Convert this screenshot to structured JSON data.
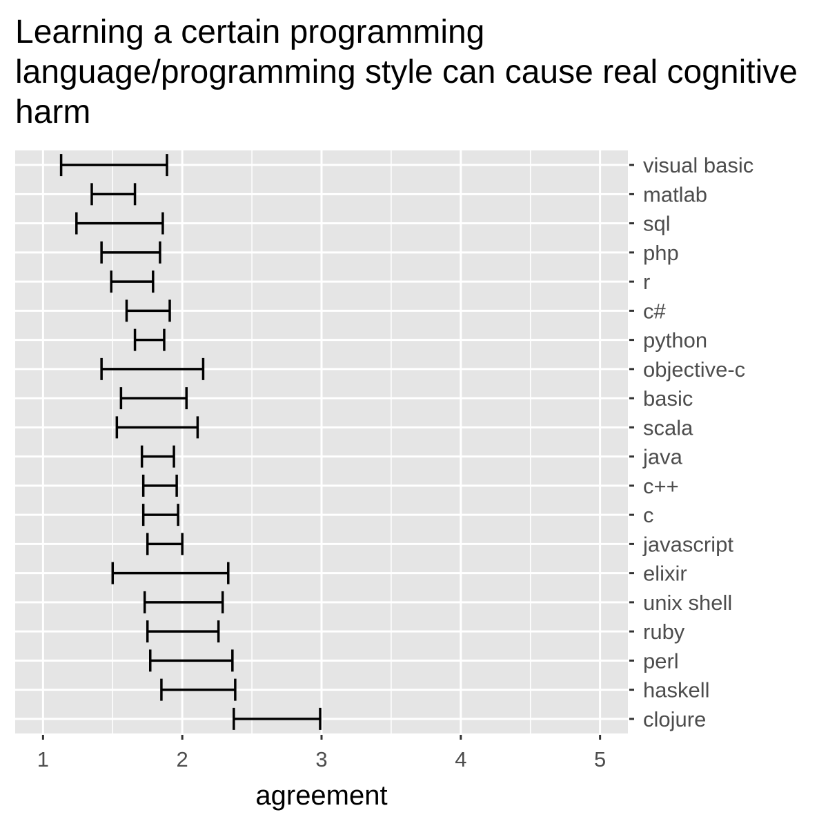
{
  "chart_data": {
    "type": "errorbar",
    "title": "Learning a certain programming language/programming style can cause real cognitive harm",
    "xlabel": "agreement",
    "ylabel": "",
    "xlim": [
      0.8,
      5.2
    ],
    "x_ticks": [
      1,
      2,
      3,
      4,
      5
    ],
    "grid": true,
    "orientation": "horizontal",
    "categories": [
      "visual basic",
      "matlab",
      "sql",
      "php",
      "r",
      "c#",
      "python",
      "objective-c",
      "basic",
      "scala",
      "java",
      "c++",
      "c",
      "javascript",
      "elixir",
      "unix shell",
      "ruby",
      "perl",
      "haskell",
      "clojure"
    ],
    "series": [
      {
        "low": [
          1.13,
          1.35,
          1.24,
          1.42,
          1.49,
          1.6,
          1.66,
          1.42,
          1.56,
          1.53,
          1.71,
          1.72,
          1.72,
          1.75,
          1.5,
          1.73,
          1.75,
          1.77,
          1.85,
          2.37
        ],
        "high": [
          1.89,
          1.66,
          1.86,
          1.84,
          1.79,
          1.91,
          1.87,
          2.15,
          2.03,
          2.11,
          1.94,
          1.96,
          1.97,
          2.0,
          2.33,
          2.29,
          2.26,
          2.36,
          2.38,
          2.99
        ]
      }
    ],
    "colors": {
      "panel": "#e5e5e5",
      "grid": "#ffffff",
      "bar": "#000000",
      "tick": "#333333",
      "tick_label": "#4d4d4d"
    }
  }
}
